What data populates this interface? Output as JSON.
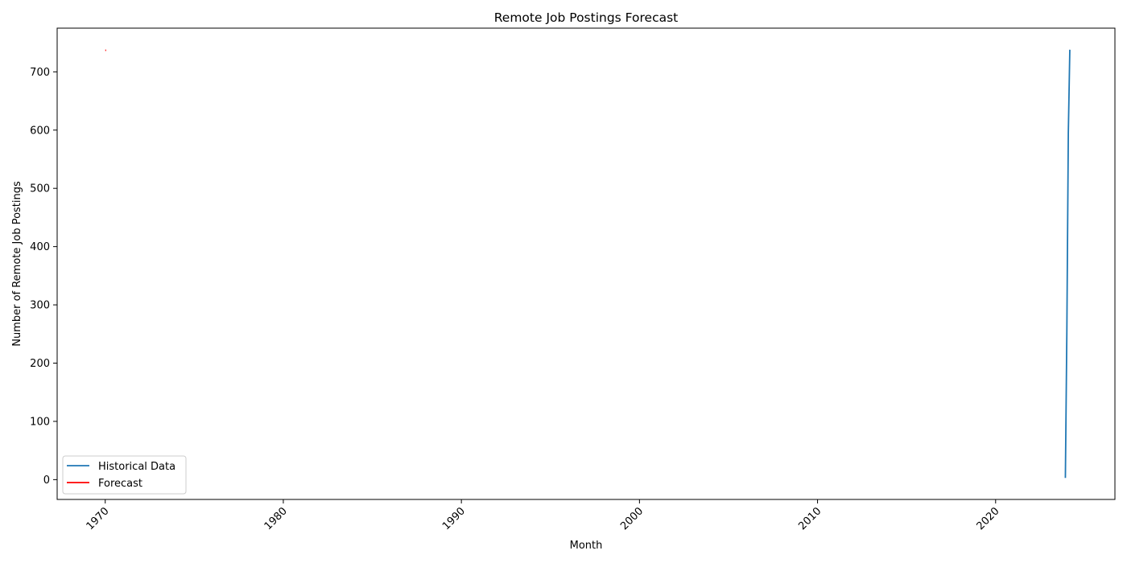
{
  "chart_data": {
    "type": "line",
    "title": "Remote Job Postings Forecast",
    "xlabel": "Month",
    "ylabel": "Number of Remote Job Postings",
    "xlim": [
      1967.3,
      2026.7
    ],
    "ylim": [
      -34,
      775
    ],
    "x_ticks": [
      1970,
      1980,
      1990,
      2000,
      2010,
      2020
    ],
    "y_ticks": [
      0,
      100,
      200,
      300,
      400,
      500,
      600,
      700
    ],
    "x_tick_rotation_deg": 45,
    "grid": false,
    "legend_position": "lower-left",
    "series": [
      {
        "name": "Historical Data",
        "color": "#1f77b4",
        "x": [
          2023.917,
          2024.0,
          2024.083,
          2024.167
        ],
        "y": [
          3,
          252,
          595,
          738
        ]
      },
      {
        "name": "Forecast",
        "color": "#ff0000",
        "x": [
          1970.0,
          1970.05
        ],
        "y": [
          737,
          737
        ]
      }
    ]
  }
}
